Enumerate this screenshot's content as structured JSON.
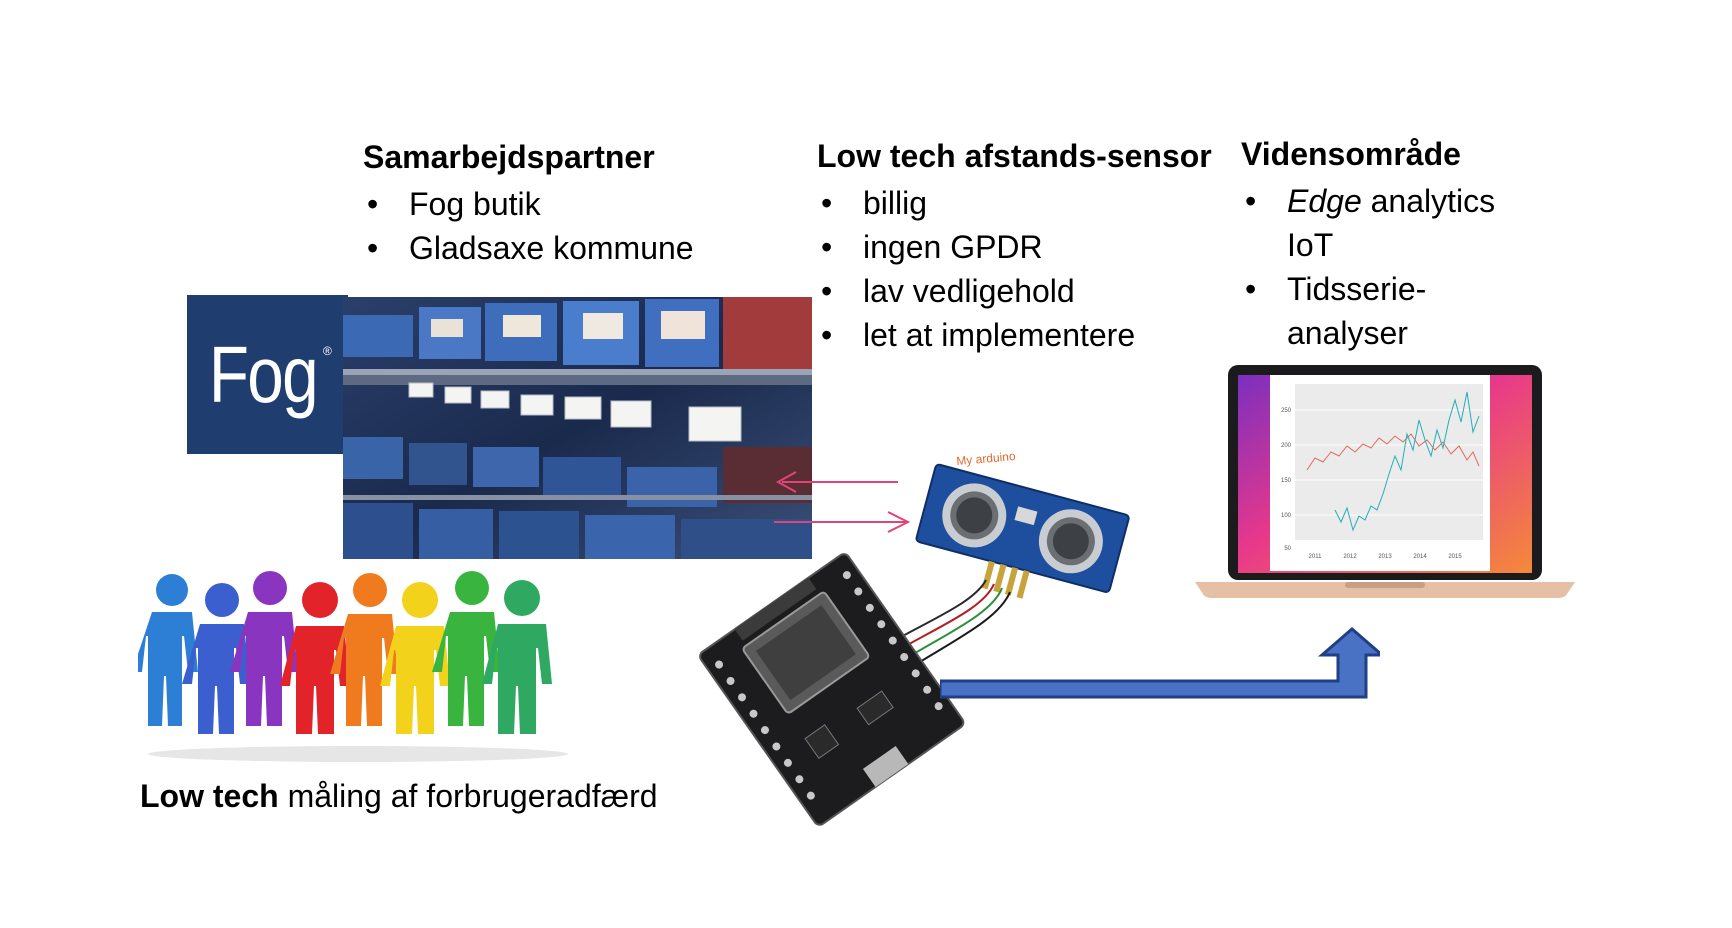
{
  "partner": {
    "title": "Samarbejdspartner",
    "items": [
      "Fog butik",
      "Gladsaxe kommune"
    ]
  },
  "sensor": {
    "title": "Low tech afstands-sensor",
    "items": [
      "billig",
      "ingen GPDR",
      "lav vedligehold",
      "let at implementere"
    ]
  },
  "knowledge": {
    "title": "Vidensområde",
    "item1_emph": "Edge",
    "item1_rest": " analytics",
    "item1_cont": "IoT",
    "item2": "Tidsserie-",
    "item2_cont": "analyser"
  },
  "logo": {
    "text": "Fog",
    "mark": "®",
    "color": "#1f3d6f"
  },
  "caption": {
    "bold": "Low tech",
    "rest": " måling af forbrugeradfærd"
  },
  "sensor_module": {
    "brand": "My arduino"
  },
  "laptop_chart": {
    "y_ticks": [
      "250",
      "200",
      "150",
      "100",
      "50"
    ],
    "x_ticks": [
      "2011",
      "2012",
      "2013",
      "2014",
      "2015"
    ],
    "series_colors": [
      "#e06a5a",
      "#22b0b8"
    ]
  },
  "colors": {
    "arrow_fill": "#4a72c4",
    "arrow_stroke": "#1f3f86",
    "pink": "#e0457a"
  }
}
